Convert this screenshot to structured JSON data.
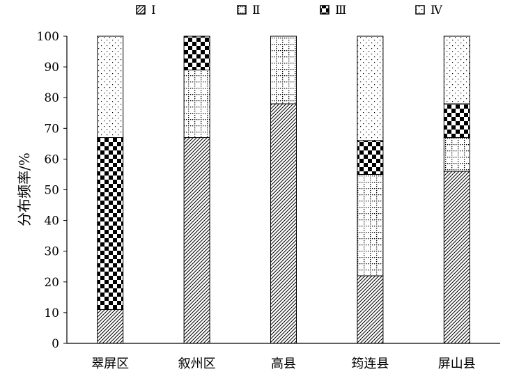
{
  "chart_data": {
    "type": "bar",
    "stacked": true,
    "categories": [
      "翠屏区",
      "叙州区",
      "高县",
      "筠连县",
      "屏山县"
    ],
    "series": [
      {
        "name": "Ⅰ",
        "values": [
          11,
          67,
          78,
          22,
          56
        ],
        "pattern": "diagonal-hatch"
      },
      {
        "name": "Ⅱ",
        "values": [
          0,
          22,
          22,
          33,
          11
        ],
        "pattern": "dotted-grid"
      },
      {
        "name": "Ⅲ",
        "values": [
          56,
          11,
          0,
          11,
          11
        ],
        "pattern": "checker"
      },
      {
        "name": "Ⅳ",
        "values": [
          33,
          0,
          0,
          34,
          22
        ],
        "pattern": "sparse-dots"
      }
    ],
    "xlabel": "",
    "ylabel": "分布频率/%",
    "ylim": [
      0,
      100
    ],
    "yticks": [
      0,
      10,
      20,
      30,
      40,
      50,
      60,
      70,
      80,
      90,
      100
    ],
    "grid": false,
    "legend_position": "top"
  }
}
